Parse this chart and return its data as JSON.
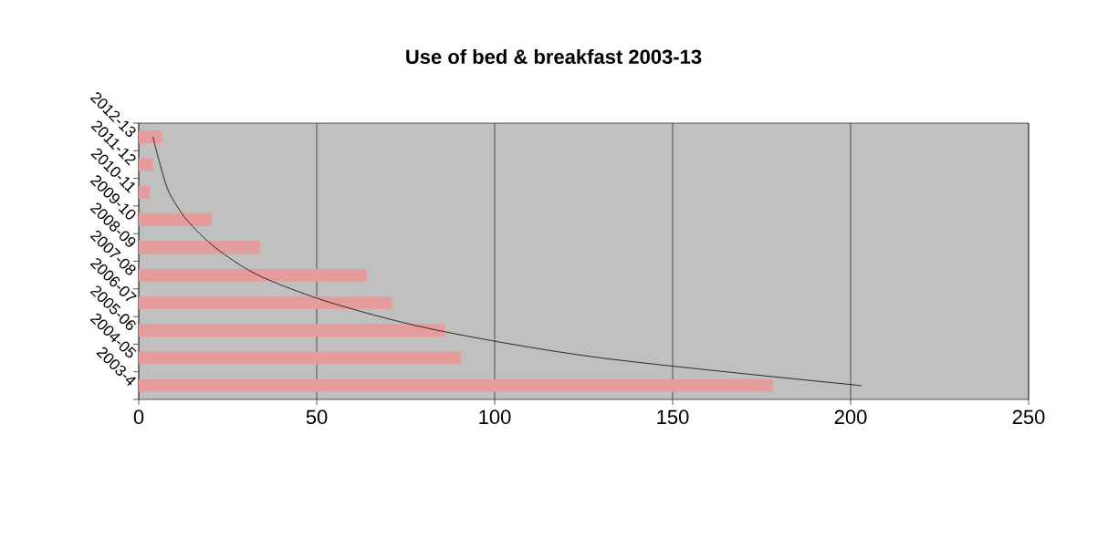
{
  "chart_data": {
    "type": "bar",
    "orientation": "horizontal",
    "title": "Use of bed & breakfast 2003-13",
    "categories": [
      "2012-13",
      "2011-12",
      "2010-11",
      "2009-10",
      "2008-09",
      "2007-08",
      "2006-07",
      "2005-06",
      "2004-05",
      "2003-4"
    ],
    "series": [
      {
        "color": "#e59c9c",
        "values": [
          6.5,
          4,
          3,
          20.5,
          34,
          64,
          71,
          86,
          90.5,
          178
        ]
      },
      {
        "type": "line",
        "color": "#1a1a1a",
        "line_style": "solid",
        "marker": "none",
        "values": [
          4,
          6,
          8.5,
          13.5,
          21.5,
          33.5,
          54,
          84,
          130,
          203
        ]
      }
    ],
    "xlim": [
      0,
      250
    ],
    "xticks": [
      0,
      50,
      100,
      150,
      200,
      250
    ],
    "grid": "x"
  }
}
